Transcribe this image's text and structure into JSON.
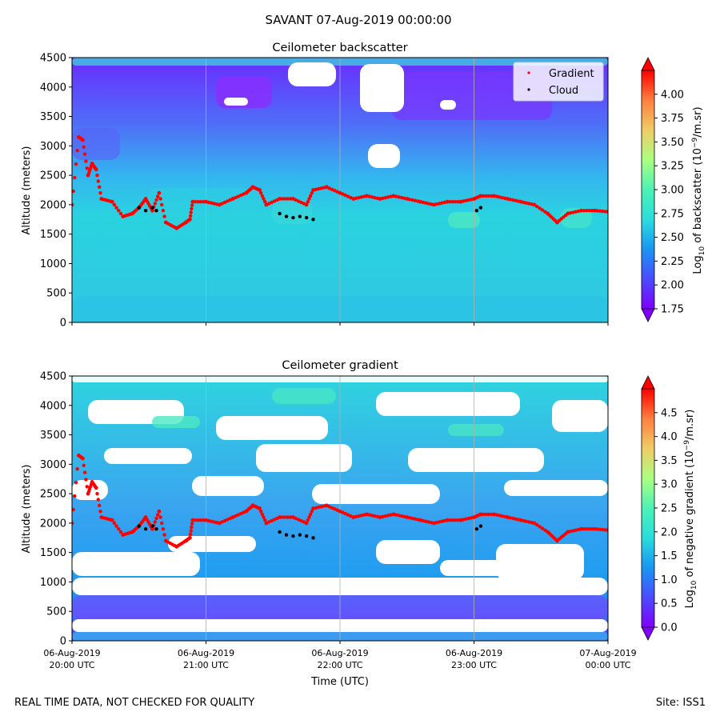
{
  "page_title": "SAVANT 07-Aug-2019 00:00:00",
  "footer_left": "REAL TIME DATA, NOT CHECKED FOR QUALITY",
  "footer_right": "Site: ISS1",
  "colors": {
    "gradient_points": "#ff0000",
    "cloud_points": "#000000",
    "colormap": [
      "#8000ff",
      "#4a4bff",
      "#1996f3",
      "#2adddd",
      "#4cf2b4",
      "#aaff80",
      "#f0cc66",
      "#ff7f3f",
      "#ff0000"
    ]
  },
  "time_axis": {
    "xlabel": "Time (UTC)",
    "ticks": [
      {
        "line1": "06-Aug-2019",
        "line2": "20:00 UTC",
        "value": 0
      },
      {
        "line1": "06-Aug-2019",
        "line2": "21:00 UTC",
        "value": 1
      },
      {
        "line1": "06-Aug-2019",
        "line2": "22:00 UTC",
        "value": 2
      },
      {
        "line1": "06-Aug-2019",
        "line2": "23:00 UTC",
        "value": 3
      },
      {
        "line1": "07-Aug-2019",
        "line2": "00:00 UTC",
        "value": 4
      }
    ]
  },
  "chart_data": [
    {
      "type": "heatmap",
      "title": "Ceilometer backscatter",
      "xlabel": "",
      "ylabel": "Altitude (meters)",
      "ylim": [
        0,
        4500
      ],
      "xlim_hours": [
        0,
        4
      ],
      "yticks": [
        0,
        500,
        1000,
        1500,
        2000,
        2500,
        3000,
        3500,
        4000,
        4500
      ],
      "colorbar": {
        "label": "Log10 of backscatter (10^-9/m.sr)",
        "label_main": "Log",
        "label_sub": "10",
        "label_rest": " of backscatter (10",
        "label_sup": "−9",
        "label_end": "/m.sr)",
        "min": 1.75,
        "max": 4.25,
        "ticks": [
          "1.75",
          "2.00",
          "2.25",
          "2.50",
          "2.75",
          "3.00",
          "3.25",
          "3.50",
          "3.75",
          "4.00"
        ]
      },
      "legend": {
        "position": "top-right",
        "entries": [
          "Gradient",
          "Cloud"
        ]
      },
      "series": [
        {
          "name": "Gradient",
          "points": [
            [
              0.0,
              2000
            ],
            [
              0.05,
              3150
            ],
            [
              0.08,
              3100
            ],
            [
              0.12,
              2500
            ],
            [
              0.15,
              2700
            ],
            [
              0.18,
              2600
            ],
            [
              0.22,
              2100
            ],
            [
              0.3,
              2050
            ],
            [
              0.38,
              1800
            ],
            [
              0.45,
              1850
            ],
            [
              0.5,
              1950
            ],
            [
              0.55,
              2100
            ],
            [
              0.6,
              1900
            ],
            [
              0.65,
              2200
            ],
            [
              0.7,
              1700
            ],
            [
              0.78,
              1600
            ],
            [
              0.85,
              1700
            ],
            [
              0.88,
              1750
            ],
            [
              0.9,
              2050
            ],
            [
              1.0,
              2050
            ],
            [
              1.1,
              2000
            ],
            [
              1.2,
              2100
            ],
            [
              1.3,
              2200
            ],
            [
              1.35,
              2300
            ],
            [
              1.4,
              2250
            ],
            [
              1.45,
              2000
            ],
            [
              1.55,
              2100
            ],
            [
              1.65,
              2100
            ],
            [
              1.75,
              2000
            ],
            [
              1.8,
              2250
            ],
            [
              1.9,
              2300
            ],
            [
              2.0,
              2200
            ],
            [
              2.1,
              2100
            ],
            [
              2.2,
              2150
            ],
            [
              2.3,
              2100
            ],
            [
              2.4,
              2150
            ],
            [
              2.5,
              2100
            ],
            [
              2.6,
              2050
            ],
            [
              2.7,
              2000
            ],
            [
              2.8,
              2050
            ],
            [
              2.9,
              2050
            ],
            [
              3.0,
              2100
            ],
            [
              3.05,
              2150
            ],
            [
              3.15,
              2150
            ],
            [
              3.25,
              2100
            ],
            [
              3.35,
              2050
            ],
            [
              3.45,
              2000
            ],
            [
              3.55,
              1850
            ],
            [
              3.62,
              1700
            ],
            [
              3.7,
              1850
            ],
            [
              3.8,
              1900
            ],
            [
              3.9,
              1900
            ],
            [
              4.0,
              1880
            ]
          ]
        },
        {
          "name": "Cloud",
          "points": [
            [
              0.5,
              1950
            ],
            [
              0.55,
              1900
            ],
            [
              0.6,
              1950
            ],
            [
              0.63,
              1900
            ],
            [
              1.55,
              1850
            ],
            [
              1.6,
              1800
            ],
            [
              1.65,
              1780
            ],
            [
              1.7,
              1800
            ],
            [
              1.75,
              1780
            ],
            [
              1.8,
              1750
            ],
            [
              3.02,
              1900
            ],
            [
              3.05,
              1950
            ]
          ]
        }
      ]
    },
    {
      "type": "heatmap",
      "title": "Ceilometer gradient",
      "xlabel": "Time (UTC)",
      "ylabel": "Altitude (meters)",
      "ylim": [
        0,
        4500
      ],
      "xlim_hours": [
        0,
        4
      ],
      "yticks": [
        0,
        500,
        1000,
        1500,
        2000,
        2500,
        3000,
        3500,
        4000,
        4500
      ],
      "colorbar": {
        "label": "Log10 of negative gradient (10^-9/m.sr)",
        "label_main": "Log",
        "label_sub": "10",
        "label_rest": " of negative gradient (10",
        "label_sup": "−9",
        "label_end": "/m.sr)",
        "min": 0.0,
        "max": 5.0,
        "ticks": [
          "0.0",
          "0.5",
          "1.0",
          "1.5",
          "2.0",
          "2.5",
          "3.0",
          "3.5",
          "4.0",
          "4.5"
        ]
      },
      "series": [
        {
          "name": "Gradient",
          "points": [
            [
              0.0,
              2000
            ],
            [
              0.05,
              3150
            ],
            [
              0.08,
              3100
            ],
            [
              0.12,
              2500
            ],
            [
              0.15,
              2700
            ],
            [
              0.18,
              2600
            ],
            [
              0.22,
              2100
            ],
            [
              0.3,
              2050
            ],
            [
              0.38,
              1800
            ],
            [
              0.45,
              1850
            ],
            [
              0.5,
              1950
            ],
            [
              0.55,
              2100
            ],
            [
              0.6,
              1900
            ],
            [
              0.65,
              2200
            ],
            [
              0.7,
              1700
            ],
            [
              0.78,
              1600
            ],
            [
              0.85,
              1700
            ],
            [
              0.88,
              1750
            ],
            [
              0.9,
              2050
            ],
            [
              1.0,
              2050
            ],
            [
              1.1,
              2000
            ],
            [
              1.2,
              2100
            ],
            [
              1.3,
              2200
            ],
            [
              1.35,
              2300
            ],
            [
              1.4,
              2250
            ],
            [
              1.45,
              2000
            ],
            [
              1.55,
              2100
            ],
            [
              1.65,
              2100
            ],
            [
              1.75,
              2000
            ],
            [
              1.8,
              2250
            ],
            [
              1.9,
              2300
            ],
            [
              2.0,
              2200
            ],
            [
              2.1,
              2100
            ],
            [
              2.2,
              2150
            ],
            [
              2.3,
              2100
            ],
            [
              2.4,
              2150
            ],
            [
              2.5,
              2100
            ],
            [
              2.6,
              2050
            ],
            [
              2.7,
              2000
            ],
            [
              2.8,
              2050
            ],
            [
              2.9,
              2050
            ],
            [
              3.0,
              2100
            ],
            [
              3.05,
              2150
            ],
            [
              3.15,
              2150
            ],
            [
              3.25,
              2100
            ],
            [
              3.35,
              2050
            ],
            [
              3.45,
              2000
            ],
            [
              3.55,
              1850
            ],
            [
              3.62,
              1700
            ],
            [
              3.7,
              1850
            ],
            [
              3.8,
              1900
            ],
            [
              3.9,
              1900
            ],
            [
              4.0,
              1880
            ]
          ]
        },
        {
          "name": "Cloud",
          "points": [
            [
              0.5,
              1950
            ],
            [
              0.55,
              1900
            ],
            [
              0.6,
              1950
            ],
            [
              0.63,
              1900
            ],
            [
              1.55,
              1850
            ],
            [
              1.6,
              1800
            ],
            [
              1.65,
              1780
            ],
            [
              1.7,
              1800
            ],
            [
              1.75,
              1780
            ],
            [
              1.8,
              1750
            ],
            [
              3.02,
              1900
            ],
            [
              3.05,
              1950
            ]
          ]
        }
      ]
    }
  ]
}
